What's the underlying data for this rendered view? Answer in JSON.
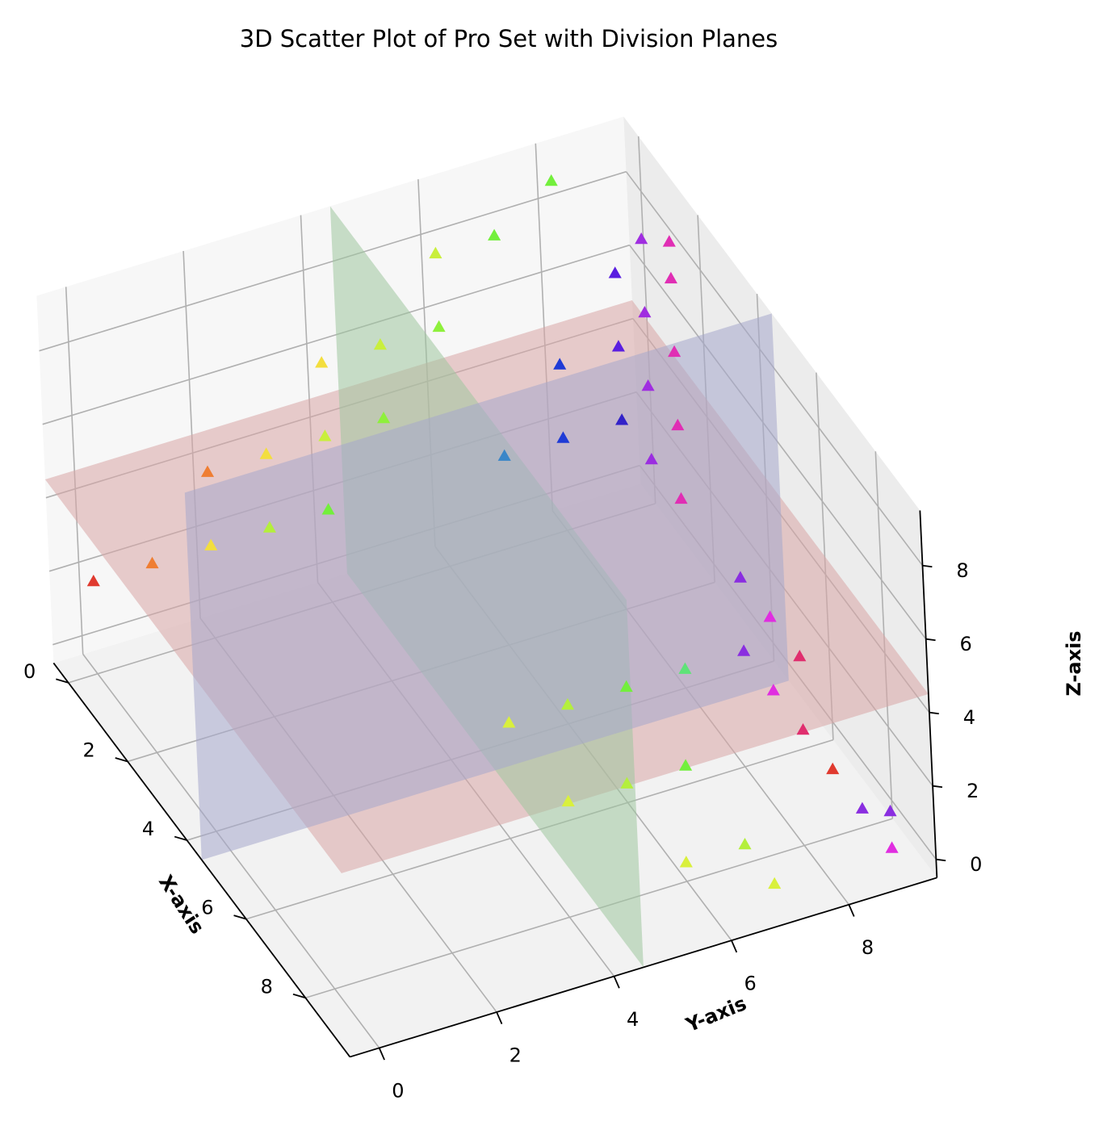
{
  "chart_data": {
    "type": "scatter",
    "projection": "3d",
    "title": "3D Scatter Plot of Pro Set with Division Planes",
    "xlabel": "X-axis",
    "ylabel": "Y-axis",
    "zlabel": "Z-axis",
    "xlim": [
      -0.5,
      9.5
    ],
    "ylim": [
      -0.5,
      9.5
    ],
    "zlim": [
      -0.5,
      9.5
    ],
    "x_ticks": [
      0,
      2,
      4,
      6,
      8
    ],
    "y_ticks": [
      0,
      2,
      4,
      6,
      8
    ],
    "z_ticks": [
      0,
      2,
      4,
      6,
      8
    ],
    "grid": true,
    "marker": "triangle",
    "planes": [
      {
        "orientation": "z",
        "value": 4.5,
        "color": "#d9a6a6"
      },
      {
        "orientation": "y",
        "value": 4.5,
        "color": "#9fc79f"
      },
      {
        "orientation": "x",
        "value": 4.5,
        "color": "#a6a8cc"
      }
    ],
    "points": [
      {
        "x": 0,
        "y": 0,
        "z": 2,
        "color": "#e03a2f"
      },
      {
        "x": 0,
        "y": 1,
        "z": 2,
        "color": "#ef7e33"
      },
      {
        "x": 0,
        "y": 2,
        "z": 2,
        "color": "#f3de3e"
      },
      {
        "x": 0,
        "y": 3,
        "z": 2,
        "color": "#b4ef3c"
      },
      {
        "x": 0,
        "y": 4,
        "z": 2,
        "color": "#73ef3c"
      },
      {
        "x": 0,
        "y": 2,
        "z": 4,
        "color": "#ef7e33"
      },
      {
        "x": 0,
        "y": 3,
        "z": 4,
        "color": "#f3de3e"
      },
      {
        "x": 0,
        "y": 4,
        "z": 4,
        "color": "#c9ef3c"
      },
      {
        "x": 0,
        "y": 5,
        "z": 4,
        "color": "#8ef03c"
      },
      {
        "x": 0,
        "y": 4,
        "z": 6,
        "color": "#f3de3e"
      },
      {
        "x": 0,
        "y": 5,
        "z": 6,
        "color": "#c9ef3c"
      },
      {
        "x": 0,
        "y": 6,
        "z": 6,
        "color": "#8ef03c"
      },
      {
        "x": 0,
        "y": 6,
        "z": 8,
        "color": "#c9ef3c"
      },
      {
        "x": 0,
        "y": 7,
        "z": 8,
        "color": "#73ef3c"
      },
      {
        "x": 0,
        "y": 8,
        "z": 9,
        "color": "#73ef3c"
      },
      {
        "x": 4,
        "y": 5,
        "z": 0,
        "color": "#d9f03c"
      },
      {
        "x": 4,
        "y": 6,
        "z": 0,
        "color": "#b4ef3c"
      },
      {
        "x": 4,
        "y": 7,
        "z": 0,
        "color": "#73ef3c"
      },
      {
        "x": 4,
        "y": 8,
        "z": 0,
        "color": "#5fe378"
      },
      {
        "x": 6,
        "y": 5,
        "z": 0,
        "color": "#d9f03c"
      },
      {
        "x": 6,
        "y": 6,
        "z": 0,
        "color": "#b4ef3c"
      },
      {
        "x": 6,
        "y": 7,
        "z": 0,
        "color": "#73ef3c"
      },
      {
        "x": 8,
        "y": 6,
        "z": 0,
        "color": "#d9f03c"
      },
      {
        "x": 8,
        "y": 7,
        "z": 0,
        "color": "#b4ef3c"
      },
      {
        "x": 9,
        "y": 7,
        "z": 0,
        "color": "#d9f03c"
      },
      {
        "x": 0,
        "y": 7,
        "z": 2,
        "color": "#3a86c8"
      },
      {
        "x": 0,
        "y": 8,
        "z": 2,
        "color": "#1f3bd6"
      },
      {
        "x": 0,
        "y": 9,
        "z": 2,
        "color": "#3222c8"
      },
      {
        "x": 1,
        "y": 9,
        "z": 2,
        "color": "#9b2ee0"
      },
      {
        "x": 2,
        "y": 9,
        "z": 2,
        "color": "#e02eb4"
      },
      {
        "x": 0,
        "y": 8,
        "z": 4,
        "color": "#1f3bd6"
      },
      {
        "x": 0,
        "y": 9,
        "z": 4,
        "color": "#5a1ee0"
      },
      {
        "x": 1,
        "y": 9,
        "z": 4,
        "color": "#a02ee0"
      },
      {
        "x": 2,
        "y": 9,
        "z": 4,
        "color": "#e02eb4"
      },
      {
        "x": 0,
        "y": 9,
        "z": 6,
        "color": "#5a1ee0"
      },
      {
        "x": 1,
        "y": 9,
        "z": 6,
        "color": "#a02ee0"
      },
      {
        "x": 2,
        "y": 9,
        "z": 6,
        "color": "#e02eb4"
      },
      {
        "x": 1,
        "y": 9,
        "z": 8,
        "color": "#a02ee0"
      },
      {
        "x": 2,
        "y": 9,
        "z": 8,
        "color": "#e02eb4"
      },
      {
        "x": 2,
        "y": 9,
        "z": 9,
        "color": "#e02eb4"
      },
      {
        "x": 4,
        "y": 9,
        "z": 2,
        "color": "#8a2ee0"
      },
      {
        "x": 5,
        "y": 9,
        "z": 2,
        "color": "#e02ee0"
      },
      {
        "x": 6,
        "y": 9,
        "z": 2,
        "color": "#e02e6e"
      },
      {
        "x": 4,
        "y": 9,
        "z": 0,
        "color": "#8a2ee0"
      },
      {
        "x": 5,
        "y": 9,
        "z": 0,
        "color": "#e02ee0"
      },
      {
        "x": 6,
        "y": 9,
        "z": 0,
        "color": "#e02e6e"
      },
      {
        "x": 7,
        "y": 9,
        "z": 0,
        "color": "#e03a2f"
      },
      {
        "x": 8,
        "y": 9,
        "z": 0,
        "color": "#8a2ee0"
      },
      {
        "x": 9,
        "y": 9,
        "z": 0,
        "color": "#e02ee0"
      },
      {
        "x": 9,
        "y": 9,
        "z": 1,
        "color": "#8a2ee0"
      }
    ]
  }
}
